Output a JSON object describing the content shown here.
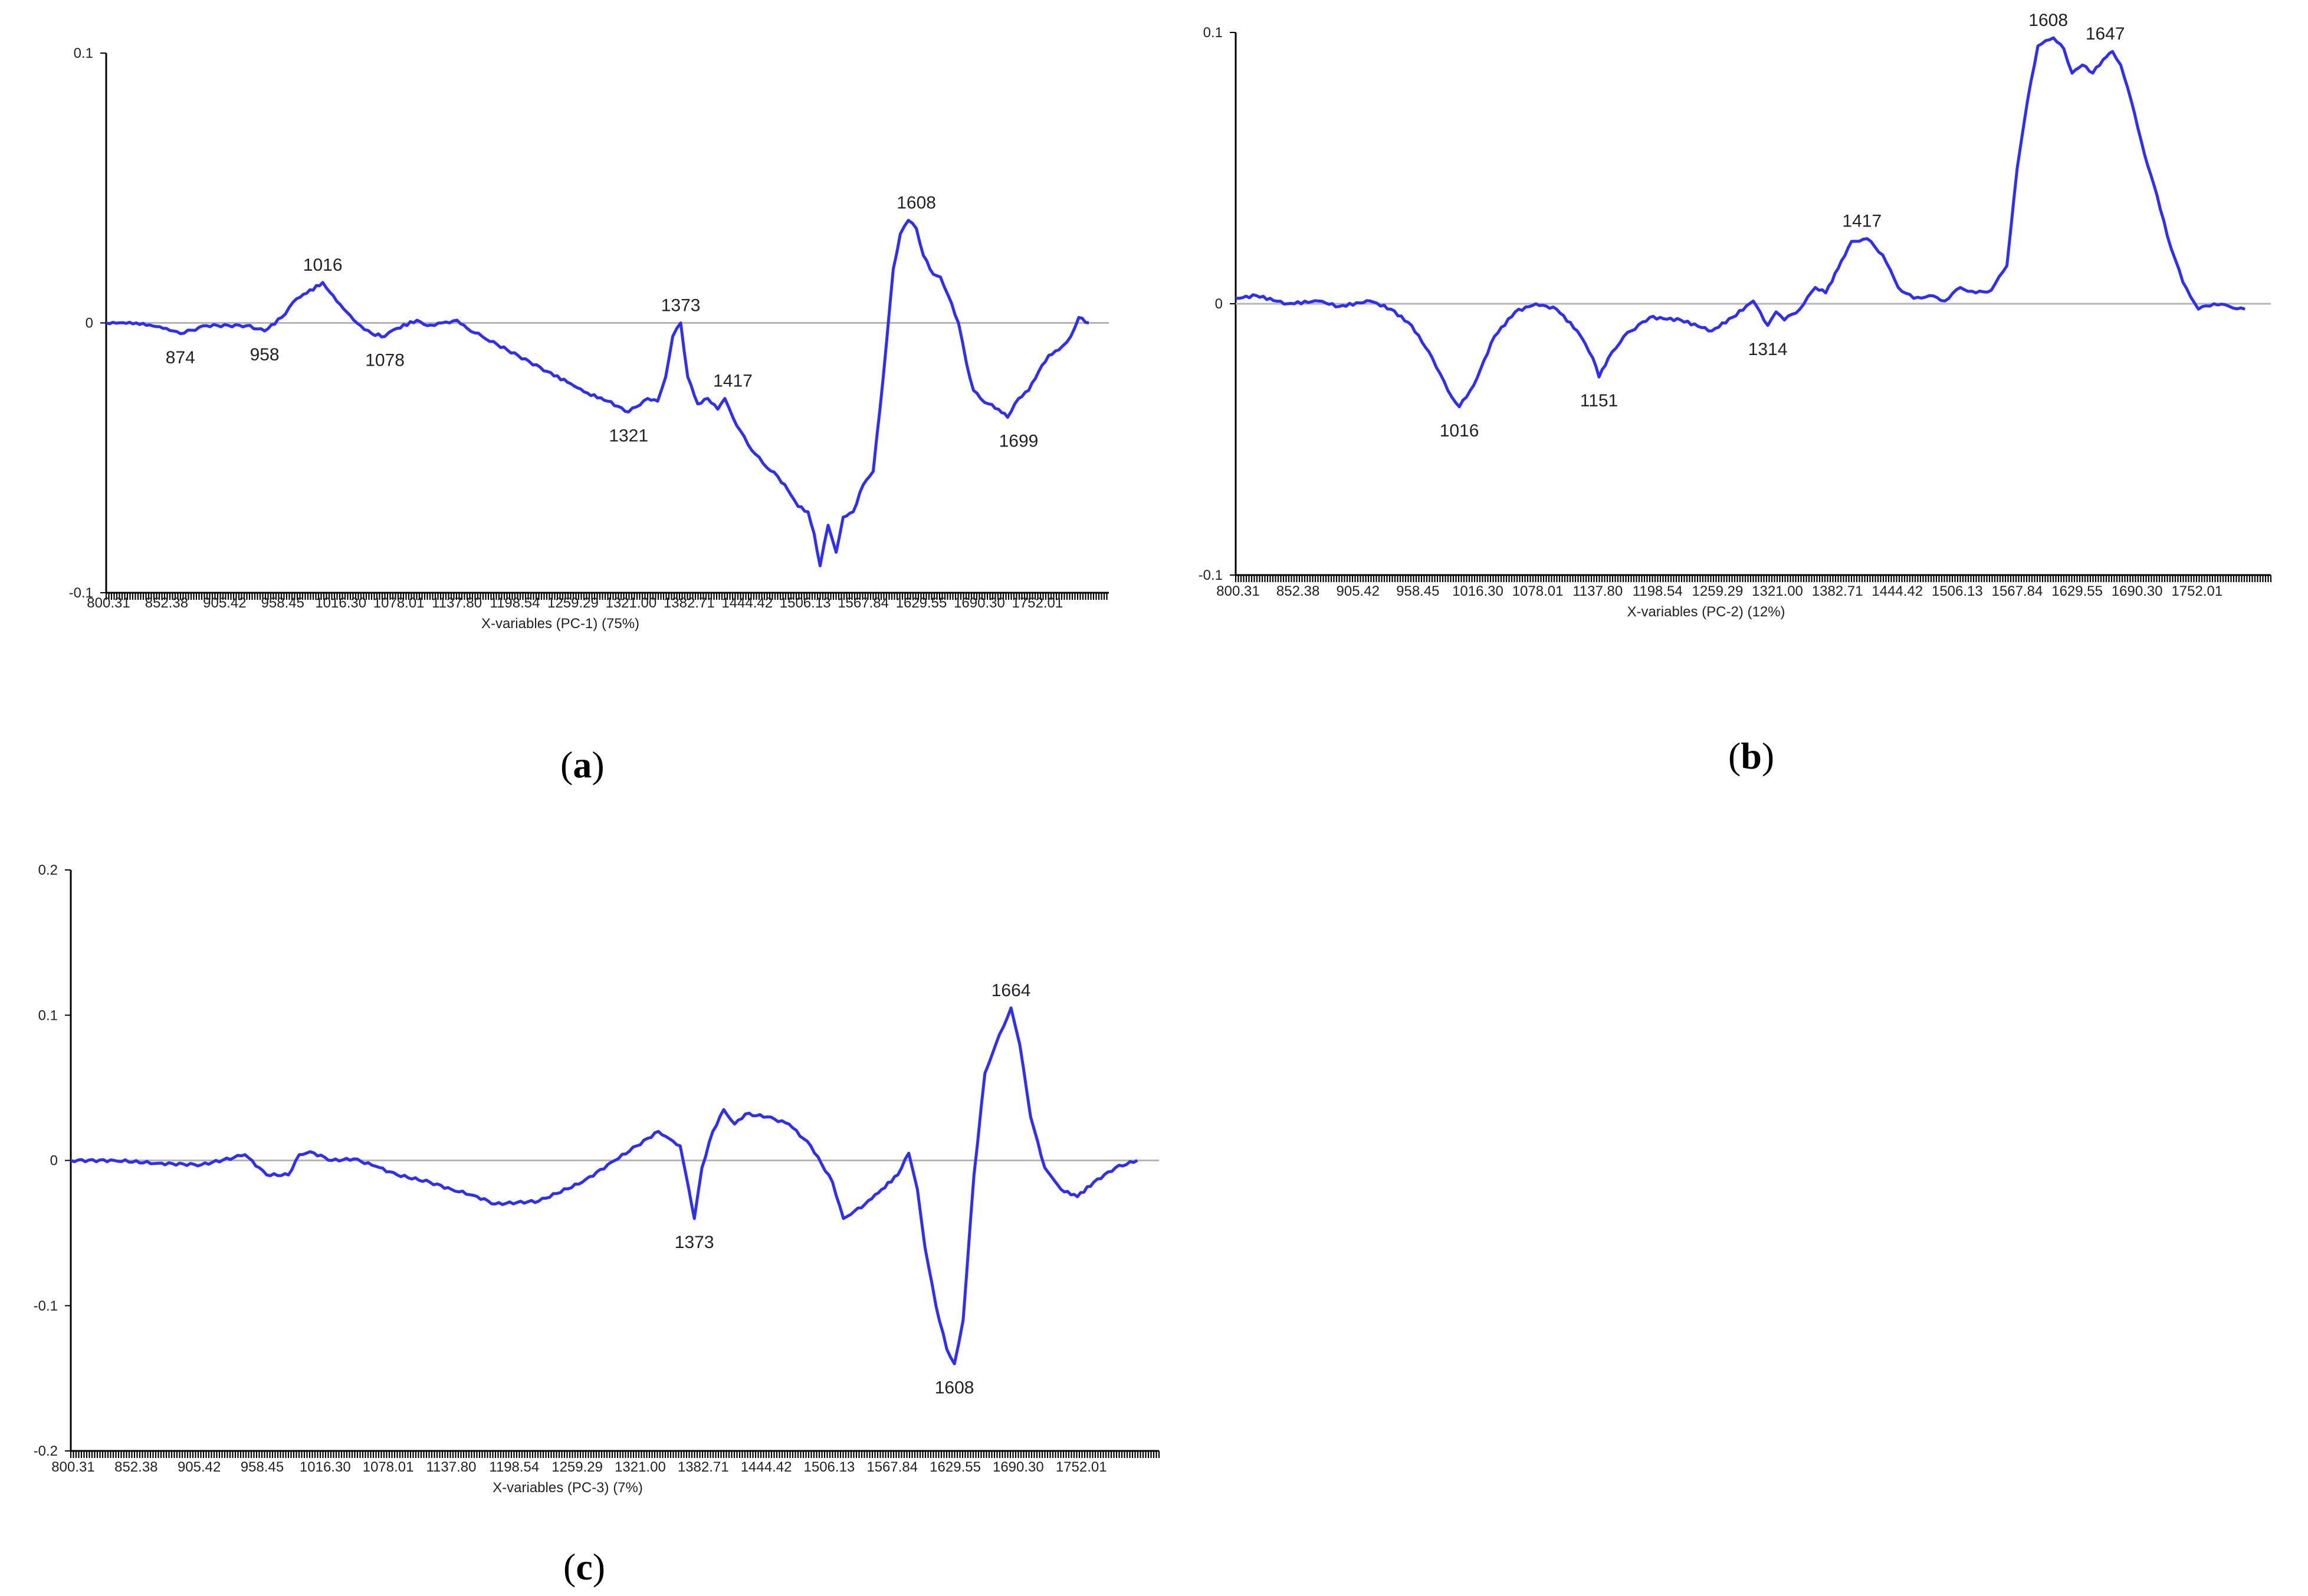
{
  "colors": {
    "line": "#2d2dff",
    "zero": "#b5b5b5",
    "axis": "#000000",
    "text": "#222222"
  },
  "panels": [
    {
      "letter": "a",
      "chart_data": {
        "type": "line",
        "title": "",
        "xlabel": "X-variables (PC-1) (75%)",
        "ylabel": "",
        "xlim": [
          800,
          1800
        ],
        "ylim": [
          -0.1,
          0.1
        ],
        "x_tick_labels": [
          "800.31",
          "852.38",
          "905.42",
          "958.45",
          "1016.30",
          "1078.01",
          "1137.80",
          "1198.54",
          "1259.29",
          "1321.00",
          "1382.71",
          "1444.42",
          "1506.13",
          "1567.84",
          "1629.55",
          "1690.30",
          "1752.01"
        ],
        "y_tick_labels": [
          "0.1",
          "0",
          "-0.1"
        ],
        "y_ticks": [
          0.1,
          0,
          -0.1
        ],
        "grid": false,
        "series": [
          {
            "x": [
              800,
              830,
              860,
              874,
              900,
              940,
              958,
              975,
              990,
              1000,
              1016,
              1030,
              1050,
              1065,
              1078,
              1090,
              1110,
              1120,
              1135,
              1150,
              1160,
              1175,
              1190,
              1200,
              1240,
              1260,
              1280,
              1300,
              1321,
              1340,
              1350,
              1358,
              1365,
              1373,
              1380,
              1390,
              1400,
              1410,
              1417,
              1425,
              1440,
              1455,
              1470,
              1480,
              1490,
              1500,
              1506,
              1512,
              1520,
              1528,
              1535,
              1545,
              1555,
              1565,
              1575,
              1585,
              1592,
              1600,
              1608,
              1615,
              1625,
              1632,
              1640,
              1650,
              1658,
              1665,
              1672,
              1680,
              1690,
              1699,
              1710,
              1720,
              1730,
              1740,
              1750,
              1762,
              1770,
              1780
            ],
            "y": [
              0,
              0,
              -0.002,
              -0.004,
              -0.001,
              -0.001,
              -0.003,
              0.002,
              0.009,
              0.011,
              0.015,
              0.008,
              0.0,
              -0.004,
              -0.005,
              -0.002,
              0.001,
              -0.001,
              0,
              0.001,
              -0.002,
              -0.005,
              -0.008,
              -0.01,
              -0.018,
              -0.022,
              -0.026,
              -0.029,
              -0.033,
              -0.028,
              -0.029,
              -0.02,
              -0.005,
              0.0,
              -0.02,
              -0.03,
              -0.028,
              -0.032,
              -0.028,
              -0.035,
              -0.045,
              -0.052,
              -0.057,
              -0.062,
              -0.068,
              -0.07,
              -0.078,
              -0.09,
              -0.075,
              -0.085,
              -0.072,
              -0.07,
              -0.06,
              -0.055,
              -0.02,
              0.02,
              0.033,
              0.038,
              0.035,
              0.025,
              0.018,
              0.017,
              0.01,
              0.0,
              -0.015,
              -0.025,
              -0.028,
              -0.03,
              -0.032,
              -0.035,
              -0.028,
              -0.025,
              -0.018,
              -0.012,
              -0.01,
              -0.005,
              0.002,
              0.0
            ]
          }
        ],
        "annotations": [
          {
            "text": "874",
            "x": 874,
            "y": -0.004,
            "pos": "below"
          },
          {
            "text": "958",
            "x": 958,
            "y": -0.003,
            "pos": "below"
          },
          {
            "text": "1016",
            "x": 1016,
            "y": 0.015,
            "pos": "above"
          },
          {
            "text": "1078",
            "x": 1078,
            "y": -0.005,
            "pos": "below"
          },
          {
            "text": "1321",
            "x": 1321,
            "y": -0.033,
            "pos": "below"
          },
          {
            "text": "1373",
            "x": 1373,
            "y": 0.0,
            "pos": "above"
          },
          {
            "text": "1417",
            "x": 1425,
            "y": -0.028,
            "pos": "above"
          },
          {
            "text": "1608",
            "x": 1608,
            "y": 0.038,
            "pos": "above"
          },
          {
            "text": "1699",
            "x": 1710,
            "y": -0.035,
            "pos": "below"
          }
        ]
      }
    },
    {
      "letter": "b",
      "chart_data": {
        "type": "line",
        "title": "",
        "xlabel": "X-variables (PC-2) (12%)",
        "ylabel": "",
        "xlim": [
          800,
          1800
        ],
        "ylim": [
          -0.1,
          0.1
        ],
        "x_tick_labels": [
          "800.31",
          "852.38",
          "905.42",
          "958.45",
          "1016.30",
          "1078.01",
          "1137.80",
          "1198.54",
          "1259.29",
          "1321.00",
          "1382.71",
          "1444.42",
          "1506.13",
          "1567.84",
          "1629.55",
          "1690.30",
          "1752.01"
        ],
        "y_tick_labels": [
          "0.1",
          "0",
          "-0.1"
        ],
        "y_ticks": [
          0.1,
          0,
          -0.1
        ],
        "grid": false,
        "series": [
          {
            "x": [
              800,
              820,
              850,
              880,
              900,
              930,
              950,
              970,
              990,
              1005,
              1016,
              1030,
              1050,
              1070,
              1090,
              1110,
              1130,
              1145,
              1151,
              1160,
              1175,
              1200,
              1230,
              1260,
              1280,
              1300,
              1314,
              1322,
              1330,
              1345,
              1360,
              1370,
              1382,
              1395,
              1410,
              1425,
              1440,
              1455,
              1470,
              1485,
              1500,
              1515,
              1530,
              1545,
              1555,
              1565,
              1575,
              1590,
              1600,
              1608,
              1618,
              1628,
              1638,
              1647,
              1655,
              1665,
              1678,
              1690,
              1700,
              1715,
              1730,
              1745,
              1760,
              1775
            ],
            "y": [
              0.002,
              0.003,
              0,
              0.001,
              -0.001,
              0.001,
              -0.002,
              -0.008,
              -0.02,
              -0.032,
              -0.038,
              -0.03,
              -0.012,
              -0.003,
              0,
              -0.002,
              -0.01,
              -0.02,
              -0.027,
              -0.02,
              -0.012,
              -0.005,
              -0.006,
              -0.01,
              -0.005,
              0.001,
              -0.008,
              -0.003,
              -0.006,
              -0.002,
              0.006,
              0.004,
              0.013,
              0.023,
              0.024,
              0.018,
              0.006,
              0.002,
              0.003,
              0.001,
              0.006,
              0.004,
              0.005,
              0.014,
              0.05,
              0.075,
              0.095,
              0.098,
              0.094,
              0.085,
              0.088,
              0.085,
              0.09,
              0.093,
              0.088,
              0.075,
              0.055,
              0.04,
              0.025,
              0.008,
              -0.002,
              0.0,
              -0.001,
              -0.002
            ]
          }
        ],
        "annotations": [
          {
            "text": "1016",
            "x": 1016,
            "y": -0.038,
            "pos": "below"
          },
          {
            "text": "1151",
            "x": 1151,
            "y": -0.027,
            "pos": "below"
          },
          {
            "text": "1314",
            "x": 1314,
            "y": -0.008,
            "pos": "below"
          },
          {
            "text": "1417",
            "x": 1405,
            "y": 0.024,
            "pos": "above"
          },
          {
            "text": "1608",
            "x": 1585,
            "y": 0.098,
            "pos": "above"
          },
          {
            "text": "1647",
            "x": 1640,
            "y": 0.093,
            "pos": "above"
          }
        ]
      }
    },
    {
      "letter": "c",
      "chart_data": {
        "type": "line",
        "title": "",
        "xlabel": "X-variables (PC-3) (7%)",
        "ylabel": "",
        "xlim": [
          800,
          1800
        ],
        "ylim": [
          -0.2,
          0.2
        ],
        "x_tick_labels": [
          "800.31",
          "852.38",
          "905.42",
          "958.45",
          "1016.30",
          "1078.01",
          "1137.80",
          "1198.54",
          "1259.29",
          "1321.00",
          "1382.71",
          "1444.42",
          "1506.13",
          "1567.84",
          "1629.55",
          "1690.30",
          "1752.01"
        ],
        "y_tick_labels": [
          "0.2",
          "0.1",
          "0",
          "-0.1",
          "-0.2"
        ],
        "y_ticks": [
          0.2,
          0.1,
          0,
          -0.1,
          -0.2
        ],
        "grid": false,
        "series": [
          {
            "x": [
              800,
              840,
              880,
              920,
              950,
              960,
              980,
              1000,
              1010,
              1020,
              1040,
              1060,
              1080,
              1100,
              1130,
              1150,
              1170,
              1190,
              1230,
              1270,
              1300,
              1320,
              1340,
              1350,
              1360,
              1368,
              1373,
              1380,
              1390,
              1400,
              1410,
              1420,
              1440,
              1460,
              1480,
              1500,
              1510,
              1520,
              1530,
              1545,
              1560,
              1570,
              1578,
              1585,
              1595,
              1605,
              1612,
              1620,
              1630,
              1640,
              1650,
              1664,
              1672,
              1682,
              1695,
              1710,
              1725,
              1740,
              1760,
              1780
            ],
            "y": [
              0,
              0,
              -0.002,
              -0.003,
              0.002,
              0.004,
              -0.01,
              -0.01,
              0.004,
              0.006,
              0.0,
              0.001,
              -0.004,
              -0.01,
              -0.015,
              -0.02,
              -0.024,
              -0.03,
              -0.028,
              -0.015,
              0,
              0.01,
              0.02,
              0.015,
              0.01,
              -0.02,
              -0.04,
              -0.005,
              0.02,
              0.035,
              0.025,
              0.032,
              0.03,
              0.025,
              0.01,
              -0.015,
              -0.04,
              -0.035,
              -0.03,
              -0.02,
              -0.01,
              0.005,
              -0.02,
              -0.06,
              -0.1,
              -0.13,
              -0.14,
              -0.11,
              -0.01,
              0.06,
              0.08,
              0.105,
              0.08,
              0.03,
              -0.005,
              -0.02,
              -0.025,
              -0.015,
              -0.005,
              0
            ]
          }
        ],
        "annotations": [
          {
            "text": "1373",
            "x": 1373,
            "y": -0.04,
            "pos": "below"
          },
          {
            "text": "1608",
            "x": 1612,
            "y": -0.14,
            "pos": "below"
          },
          {
            "text": "1664",
            "x": 1664,
            "y": 0.105,
            "pos": "above"
          }
        ]
      }
    }
  ]
}
